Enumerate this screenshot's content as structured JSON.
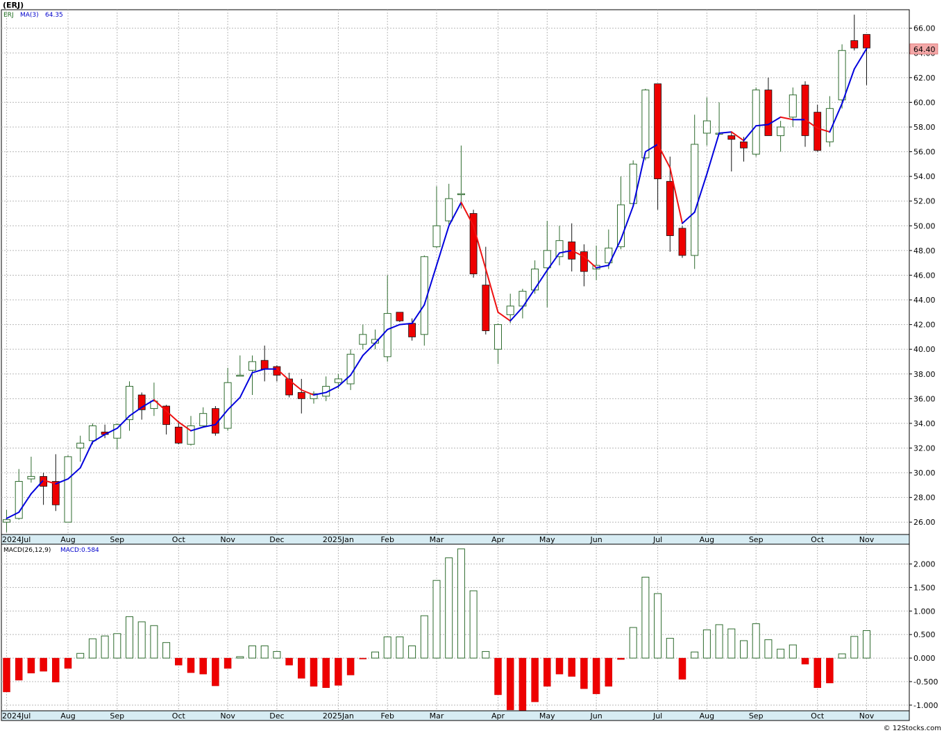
{
  "header": {
    "ticker_title": "(ERJ)"
  },
  "price_panel": {
    "legend_symbol": "ERJ",
    "legend_ma_label": "MA(3)",
    "legend_ma_value": "64.35",
    "last_price_tag": "64.40"
  },
  "macd_panel": {
    "legend_params": "MACD(26,12,9)",
    "legend_value": "MACD:0.584"
  },
  "footer": {
    "copyright": "© 12Stocks.com"
  },
  "colors": {
    "up_candle": "#2e6b2e",
    "down_candle": "#ee0000",
    "ma_up": "#0000dd",
    "ma_down": "#ee1111",
    "axis_band": "#d7ecf3",
    "price_tag_bg": "#f4a8a8"
  },
  "chart_data": [
    {
      "type": "candlestick",
      "timeframe": "weekly",
      "ylim": [
        25,
        67.5
      ],
      "price_ticks": [
        "26.00",
        "28.00",
        "30.00",
        "32.00",
        "34.00",
        "36.00",
        "38.00",
        "40.00",
        "42.00",
        "44.00",
        "46.00",
        "48.00",
        "50.00",
        "52.00",
        "54.00",
        "56.00",
        "58.00",
        "60.00",
        "62.00",
        "64.00",
        "66.00"
      ],
      "x_labels": [
        {
          "week": 0,
          "label": "2024Jul"
        },
        {
          "week": 5,
          "label": "Aug"
        },
        {
          "week": 9,
          "label": "Sep"
        },
        {
          "week": 14,
          "label": "Oct"
        },
        {
          "week": 18,
          "label": "Nov"
        },
        {
          "week": 22,
          "label": "Dec"
        },
        {
          "week": 27,
          "label": "2025Jan"
        },
        {
          "week": 31,
          "label": "Feb"
        },
        {
          "week": 35,
          "label": "Mar"
        },
        {
          "week": 40,
          "label": "Apr"
        },
        {
          "week": 44,
          "label": "May"
        },
        {
          "week": 48,
          "label": "Jun"
        },
        {
          "week": 53,
          "label": "Jul"
        },
        {
          "week": 57,
          "label": "Aug"
        },
        {
          "week": 61,
          "label": "Sep"
        },
        {
          "week": 66,
          "label": "Oct"
        },
        {
          "week": 70,
          "label": "Nov"
        }
      ],
      "candles": [
        [
          26.0,
          26.2,
          25.2,
          27.0
        ],
        [
          26.3,
          29.3,
          26.2,
          30.3
        ],
        [
          29.5,
          29.7,
          29.2,
          31.3
        ],
        [
          29.7,
          28.9,
          27.4,
          30.0
        ],
        [
          29.3,
          27.4,
          26.9,
          31.5
        ],
        [
          26.0,
          31.3,
          26.0,
          31.4
        ],
        [
          32.0,
          32.4,
          30.9,
          33.0
        ],
        [
          32.6,
          33.8,
          32.3,
          34.0
        ],
        [
          33.3,
          33.1,
          32.8,
          33.9
        ],
        [
          32.8,
          33.9,
          31.9,
          34.0
        ],
        [
          34.3,
          37.0,
          33.4,
          37.4
        ],
        [
          36.3,
          35.1,
          34.3,
          36.5
        ],
        [
          35.2,
          35.8,
          34.6,
          37.3
        ],
        [
          35.4,
          33.9,
          33.1,
          35.5
        ],
        [
          33.7,
          32.4,
          32.3,
          34.2
        ],
        [
          32.3,
          33.8,
          32.2,
          34.6
        ],
        [
          33.8,
          34.8,
          33.8,
          35.3
        ],
        [
          35.2,
          33.2,
          33.0,
          35.4
        ],
        [
          33.6,
          37.3,
          33.4,
          38.5
        ],
        [
          37.9,
          37.9,
          37.9,
          39.5
        ],
        [
          38.3,
          39.0,
          36.3,
          39.5
        ],
        [
          39.1,
          38.4,
          37.4,
          40.3
        ],
        [
          38.6,
          37.9,
          37.4,
          38.7
        ],
        [
          37.6,
          36.3,
          36.1,
          38.1
        ],
        [
          36.5,
          36.0,
          34.8,
          37.6
        ],
        [
          36.0,
          36.4,
          35.6,
          36.6
        ],
        [
          36.2,
          37.0,
          35.8,
          37.8
        ],
        [
          37.3,
          37.6,
          36.8,
          38.0
        ],
        [
          37.2,
          39.6,
          36.7,
          40.0
        ],
        [
          40.4,
          41.2,
          40.0,
          42.0
        ],
        [
          40.5,
          40.8,
          40.0,
          41.6
        ],
        [
          39.4,
          42.9,
          39.0,
          46.0
        ],
        [
          43.0,
          42.3,
          42.2,
          43.0
        ],
        [
          42.1,
          41.0,
          40.7,
          42.5
        ],
        [
          41.2,
          47.5,
          40.3,
          47.6
        ],
        [
          48.3,
          50.0,
          48.2,
          53.2
        ],
        [
          50.4,
          52.2,
          50.1,
          53.4
        ],
        [
          52.6,
          52.6,
          51.4,
          56.5
        ],
        [
          51.0,
          46.1,
          45.8,
          51.3
        ],
        [
          45.2,
          41.5,
          41.2,
          48.3
        ],
        [
          40.0,
          42.0,
          38.8,
          42.1
        ],
        [
          42.8,
          43.5,
          42.1,
          44.5
        ],
        [
          43.5,
          44.7,
          42.5,
          44.9
        ],
        [
          44.8,
          46.5,
          44.5,
          47.2
        ],
        [
          46.6,
          48.0,
          43.4,
          50.4
        ],
        [
          47.5,
          48.8,
          46.8,
          50.0
        ],
        [
          48.7,
          47.3,
          46.3,
          50.2
        ],
        [
          47.9,
          46.3,
          45.1,
          48.5
        ],
        [
          46.5,
          46.8,
          45.6,
          48.4
        ],
        [
          47.0,
          48.2,
          46.5,
          49.7
        ],
        [
          48.3,
          51.7,
          48.1,
          54.0
        ],
        [
          51.8,
          55.0,
          51.6,
          55.3
        ],
        [
          55.5,
          61.0,
          55.3,
          61.1
        ],
        [
          61.5,
          53.8,
          51.3,
          61.5
        ],
        [
          53.6,
          49.2,
          47.9,
          55.6
        ],
        [
          49.8,
          47.6,
          47.4,
          50.0
        ],
        [
          47.6,
          56.6,
          46.5,
          59.0
        ],
        [
          57.5,
          58.5,
          56.5,
          60.4
        ],
        [
          57.5,
          57.5,
          57.5,
          60.0
        ],
        [
          57.3,
          57.0,
          54.4,
          57.6
        ],
        [
          56.8,
          56.3,
          55.2,
          57.2
        ],
        [
          55.8,
          61.0,
          55.6,
          61.2
        ],
        [
          61.0,
          57.3,
          57.3,
          62.0
        ],
        [
          57.3,
          58.0,
          56.0,
          58.5
        ],
        [
          58.8,
          60.6,
          58.0,
          61.2
        ],
        [
          61.4,
          57.3,
          56.4,
          61.7
        ],
        [
          59.2,
          56.1,
          56.0,
          59.8
        ],
        [
          56.8,
          59.5,
          56.4,
          60.5
        ],
        [
          60.2,
          64.2,
          59.5,
          64.7
        ],
        [
          65.0,
          64.4,
          64.2,
          67.1
        ],
        [
          65.5,
          64.4,
          61.4,
          65.5
        ]
      ],
      "ma3": [
        26.3,
        26.8,
        28.3,
        29.4,
        29.1,
        29.5,
        30.4,
        32.5,
        33.1,
        33.6,
        34.6,
        35.3,
        35.9,
        35.0,
        34.1,
        33.4,
        33.7,
        33.9,
        35.1,
        36.1,
        38.1,
        38.4,
        38.4,
        37.5,
        36.7,
        36.3,
        36.5,
        37.0,
        37.9,
        39.5,
        40.5,
        41.6,
        42.0,
        42.1,
        43.6,
        46.8,
        50.0,
        51.9,
        50.0,
        46.5,
        43.0,
        42.3,
        43.4,
        44.9,
        46.4,
        47.8,
        48.0,
        47.5,
        46.6,
        46.8,
        48.9,
        51.6,
        56.0,
        56.6,
        54.7,
        50.2,
        51.1,
        54.2,
        57.5,
        57.6,
        56.9,
        58.1,
        58.2,
        58.8,
        58.6,
        58.6,
        57.9,
        57.6,
        59.9,
        62.7,
        64.35
      ]
    },
    {
      "type": "bar",
      "title": "MACD(26,12,9)",
      "ylim": [
        -1.12,
        2.42
      ],
      "y_ticks": [
        "-1.000",
        "-0.500",
        "0.000",
        "0.500",
        "1.000",
        "1.500",
        "2.000"
      ],
      "values": [
        -0.72,
        -0.47,
        -0.32,
        -0.28,
        -0.51,
        -0.22,
        0.1,
        0.41,
        0.47,
        0.52,
        0.88,
        0.77,
        0.69,
        0.33,
        -0.15,
        -0.31,
        -0.34,
        -0.59,
        -0.22,
        0.03,
        0.26,
        0.26,
        0.14,
        -0.15,
        -0.43,
        -0.6,
        -0.63,
        -0.58,
        -0.36,
        -0.02,
        0.13,
        0.45,
        0.45,
        0.26,
        0.9,
        1.65,
        2.13,
        2.32,
        1.43,
        0.14,
        -0.78,
        -1.1,
        -1.12,
        -0.93,
        -0.6,
        -0.34,
        -0.39,
        -0.65,
        -0.76,
        -0.6,
        -0.03,
        0.65,
        1.72,
        1.37,
        0.42,
        -0.45,
        0.13,
        0.6,
        0.71,
        0.62,
        0.37,
        0.73,
        0.39,
        0.19,
        0.28,
        -0.13,
        -0.63,
        -0.53,
        0.09,
        0.46,
        0.584
      ]
    }
  ]
}
